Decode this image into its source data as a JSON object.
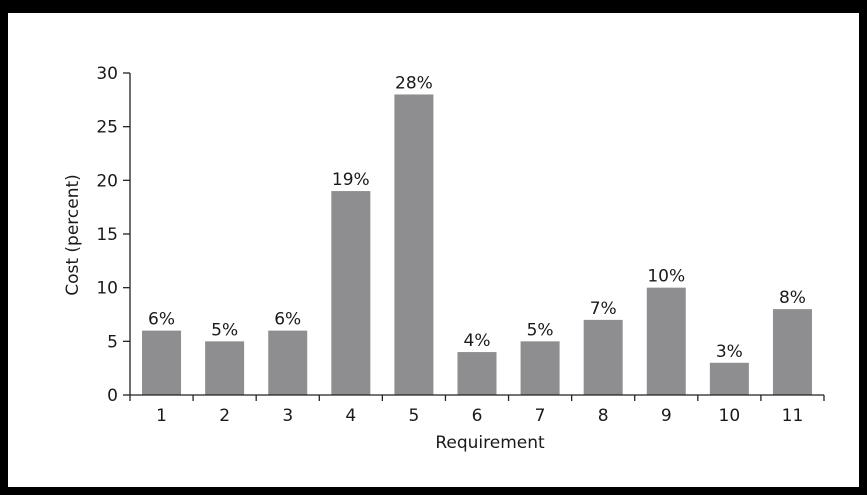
{
  "chart_data": {
    "type": "bar",
    "categories": [
      "1",
      "2",
      "3",
      "4",
      "5",
      "6",
      "7",
      "8",
      "9",
      "10",
      "11"
    ],
    "values": [
      6,
      5,
      6,
      19,
      28,
      4,
      5,
      7,
      10,
      3,
      8
    ],
    "data_labels": [
      "6%",
      "5%",
      "6%",
      "19%",
      "28%",
      "4%",
      "5%",
      "7%",
      "10%",
      "3%",
      "8%"
    ],
    "xlabel": "Requirement",
    "ylabel": "Cost (percent)",
    "ylim": [
      0,
      30
    ],
    "yticks": [
      "0",
      "5",
      "10",
      "15",
      "20",
      "25",
      "30"
    ],
    "ytick_values": [
      0,
      5,
      10,
      15,
      20,
      25,
      30
    ],
    "grid": false,
    "bar_color": "#8e8e90"
  }
}
